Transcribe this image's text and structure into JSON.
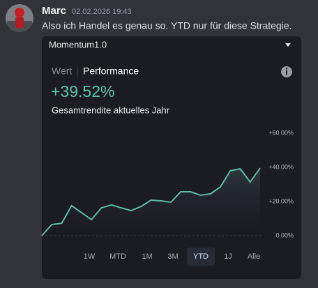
{
  "message": {
    "author": "Marc",
    "timestamp": "02.02.2026 19:43",
    "text": "Also ich Handel es genau so. YTD nur für diese Strategie."
  },
  "widget": {
    "dropdown": "Momentum1.0",
    "tabs": [
      "Wert",
      "Performance"
    ],
    "headline": "+39.52%",
    "subtitle": "Gesamtrendite aktuelles Jahr",
    "ranges": [
      "1W",
      "MTD",
      "1M",
      "3M",
      "YTD",
      "1J",
      "Alle"
    ],
    "selected_range": "YTD"
  },
  "chart_data": {
    "type": "area",
    "color": "#5fb8a8",
    "values": [
      0,
      6.5,
      7.3,
      17.6,
      13.5,
      9.4,
      16.3,
      18,
      16.3,
      14.7,
      17.1,
      20.8,
      20.4,
      19.6,
      25.7,
      25.7,
      23.7,
      24.5,
      28.6,
      38,
      39.2,
      31.4,
      39.6
    ],
    "ylim": [
      0,
      60
    ],
    "yticks": [
      {
        "value": 0,
        "label": "0.00%"
      },
      {
        "value": 20,
        "label": "+20.00%"
      },
      {
        "value": 40,
        "label": "+40.00%"
      },
      {
        "value": 60,
        "label": "+60.00%"
      }
    ]
  }
}
